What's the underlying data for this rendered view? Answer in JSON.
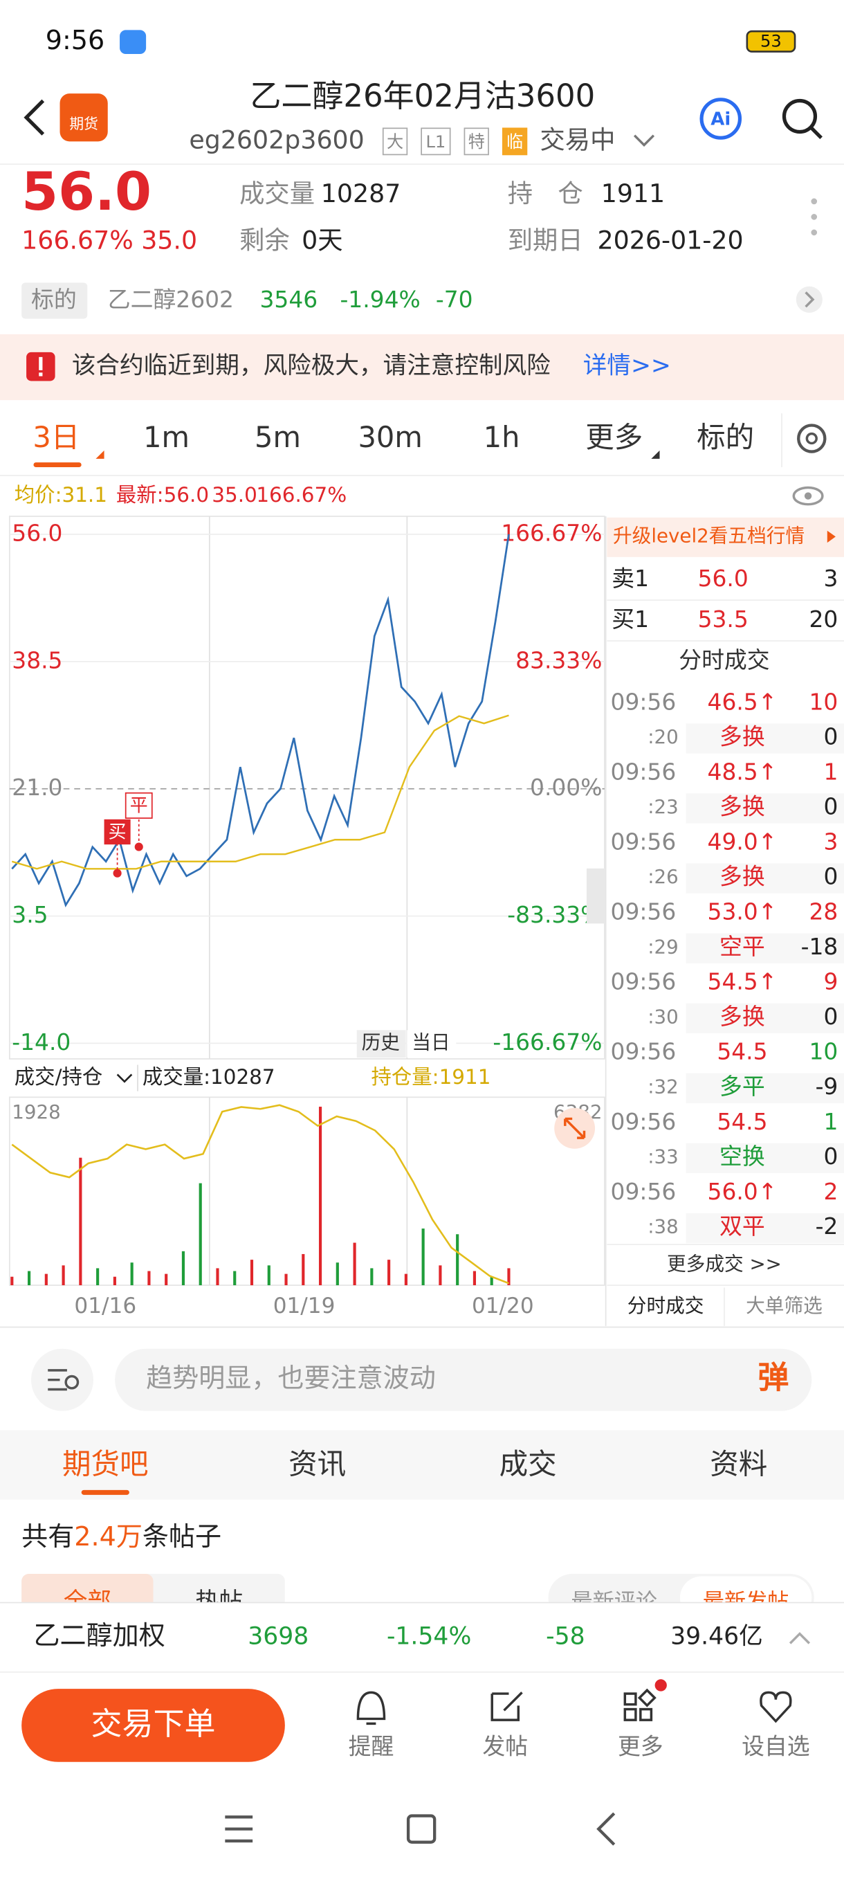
{
  "status": {
    "time": "9:56",
    "battery": "53"
  },
  "header": {
    "logo": "期货",
    "title": "乙二醇26年02月沽3600",
    "code": "eg2602p3600",
    "tags": [
      "大",
      "L1",
      "特",
      "临"
    ],
    "state": "交易中",
    "ai": "Ai"
  },
  "quote": {
    "price": "56.0",
    "change_pct": "166.67%",
    "change": "35.0",
    "volume_label": "成交量",
    "volume": "10287",
    "oi_label": "持　仓",
    "oi": "1911",
    "remaining_label": "剩余",
    "remaining": "0天",
    "expiry_label": "到期日",
    "expiry": "2026-01-20"
  },
  "underlying": {
    "label": "标的",
    "name": "乙二醇2602",
    "price": "3546",
    "pct": "-1.94%",
    "change": "-70"
  },
  "warning": {
    "text": "该合约临近到期，风险极大，请注意控制风险",
    "link": "详情>>"
  },
  "tabs": [
    "3日",
    "1m",
    "5m",
    "30m",
    "1h",
    "更多",
    "标的"
  ],
  "legend": {
    "avg": "均价:31.1",
    "latest": "最新:56.0",
    "change": "35.0",
    "pct": "166.67%"
  },
  "chart_data": {
    "type": "line",
    "ylim": [
      -14,
      56
    ],
    "yticks": [
      {
        "value": 56,
        "label": "56.0"
      },
      {
        "value": 38.5,
        "label": "38.5"
      },
      {
        "value": 21,
        "label": "21.0"
      },
      {
        "value": 3.5,
        "label": "3.5"
      },
      {
        "value": -14,
        "label": "-14.0"
      }
    ],
    "yticks_right": [
      "166.67%",
      "83.33%",
      "0.00%",
      "-83.33%",
      "-166.67%"
    ],
    "x_labels": [
      "01/16",
      "01/19",
      "01/20"
    ],
    "series": [
      {
        "color": "#2f6fb5",
        "values": [
          10,
          12,
          8,
          11,
          5,
          8,
          13,
          11,
          14,
          7,
          12,
          8,
          12,
          9,
          10,
          12,
          14,
          24,
          15,
          19,
          21,
          28,
          18,
          14,
          20,
          16,
          28,
          42,
          47,
          35,
          33,
          30,
          34,
          24,
          30,
          33,
          44,
          56
        ]
      },
      {
        "color": "#e3bd1c",
        "values": [
          11,
          10,
          11,
          10,
          10,
          10,
          11,
          11,
          11,
          11,
          12,
          12,
          13,
          14,
          14,
          15,
          24,
          29,
          31,
          30,
          31.1
        ]
      }
    ],
    "markers": [
      "买",
      "平"
    ],
    "history": [
      "历史",
      "当日"
    ],
    "volume_panel": {
      "selector": "成交/持仓",
      "volume": "成交量:10287",
      "oi": "持仓量:1911"
    },
    "volume": {
      "max": 6382,
      "values": [
        300,
        500,
        400,
        700,
        4500,
        600,
        300,
        800,
        500,
        400,
        1200,
        3600,
        600,
        500,
        900,
        700,
        400,
        1100,
        6300,
        800,
        1500,
        600,
        900,
        400,
        2000,
        700,
        1800,
        500,
        300,
        600
      ],
      "colors": [
        "#e0262b",
        "#1f9d3a",
        "#e0262b",
        "#e0262b",
        "#e0262b",
        "#1f9d3a",
        "#e0262b",
        "#1f9d3a",
        "#e0262b",
        "#e0262b",
        "#1f9d3a",
        "#1f9d3a",
        "#e0262b",
        "#1f9d3a",
        "#e0262b",
        "#1f9d3a",
        "#e0262b",
        "#e0262b",
        "#e0262b",
        "#1f9d3a",
        "#e0262b",
        "#1f9d3a",
        "#e0262b",
        "#e0262b",
        "#1f9d3a",
        "#e0262b",
        "#1f9d3a",
        "#e0262b",
        "#1f9d3a",
        "#e0262b"
      ]
    },
    "open_interest": {
      "max": 1928,
      "color": "#e3bd1c",
      "values": [
        1500,
        1350,
        1200,
        1150,
        1300,
        1350,
        1500,
        1450,
        1500,
        1350,
        1400,
        1850,
        1900,
        1880,
        1920,
        1850,
        1700,
        1800,
        1750,
        1650,
        1450,
        1100,
        700,
        400,
        250,
        100,
        20
      ]
    }
  },
  "book": {
    "banner": "升级level2看五档行情",
    "ask": [
      "卖1",
      "56.0",
      "3"
    ],
    "bid": [
      "买1",
      "53.5",
      "20"
    ],
    "title": "分时成交",
    "trades": [
      [
        "09:56",
        ":20",
        "46.5↑",
        "10",
        "多换",
        "0"
      ],
      [
        "09:56",
        ":23",
        "48.5↑",
        "1",
        "多换",
        "0"
      ],
      [
        "09:56",
        ":26",
        "49.0↑",
        "3",
        "多换",
        "0"
      ],
      [
        "09:56",
        ":29",
        "53.0↑",
        "28",
        "空平",
        "-18"
      ],
      [
        "09:56",
        ":30",
        "54.5↑",
        "9",
        "多换",
        "0"
      ],
      [
        "09:56",
        ":32",
        "54.5",
        "10",
        "多平",
        "-9"
      ],
      [
        "09:56",
        ":33",
        "54.5",
        "1",
        "空换",
        "0"
      ],
      [
        "09:56",
        ":38",
        "56.0↑",
        "2",
        "双平",
        "-2"
      ]
    ],
    "more": "更多成交 >>",
    "tabs": [
      "分时成交",
      "大单筛选"
    ]
  },
  "comment": {
    "placeholder": "趋势明显，也要注意波动",
    "button": "弹"
  },
  "sections": [
    "期货吧",
    "资讯",
    "成交",
    "资料"
  ],
  "posts": {
    "prefix": "共有",
    "count": "2.4万",
    "suffix": "条帖子",
    "subtabs": [
      "全部",
      "热帖"
    ],
    "sort": [
      "最新评论",
      "最新发帖"
    ]
  },
  "ticker": {
    "name": "乙二醇加权",
    "price": "3698",
    "pct": "-1.54%",
    "change": "-58",
    "amount": "39.46亿"
  },
  "actions": {
    "order": "交易下单",
    "items": [
      "提醒",
      "发帖",
      "更多",
      "设自选"
    ]
  }
}
